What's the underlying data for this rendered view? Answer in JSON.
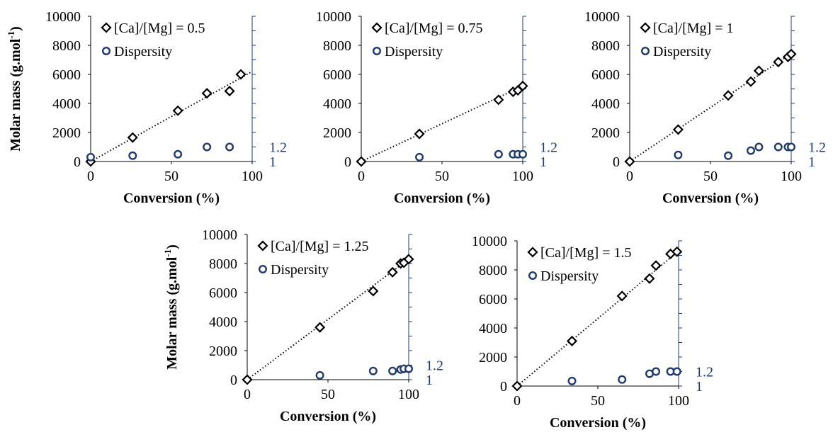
{
  "chart_data": [
    {
      "type": "scatter",
      "xlabel": "Conversion (%)",
      "ylabel": "Molar mass (g.mol",
      "ylabel_sup": "-1",
      "xlim": [
        0,
        100
      ],
      "ylim": [
        0,
        10000
      ],
      "y2lim": [
        1,
        3
      ],
      "x_ticks": [
        "0",
        "50",
        "100"
      ],
      "y_ticks": [
        "0",
        "2000",
        "4000",
        "6000",
        "8000",
        "10000"
      ],
      "y2_ticks": [
        "1",
        "1.2"
      ],
      "legend": [
        "[Ca]/[Mg] = 0.5",
        "Dispersity"
      ],
      "colors": {
        "molar_mass": "#000000",
        "dispersity": "#1f3a6e",
        "trendline": "#000000"
      },
      "series": [
        {
          "name": "[Ca]/[Mg] = 0.5",
          "marker": "diamond",
          "axis": "left",
          "x": [
            0,
            26,
            54,
            72,
            86,
            93
          ],
          "y": [
            0,
            1650,
            3500,
            4700,
            4850,
            6000
          ]
        },
        {
          "name": "Dispersity",
          "marker": "circle",
          "axis": "right",
          "x": [
            0,
            26,
            54,
            72,
            86
          ],
          "y": [
            1.06,
            1.08,
            1.1,
            1.2,
            1.2
          ]
        }
      ],
      "trendline": {
        "x": [
          0,
          100
        ],
        "y": [
          0,
          6200
        ]
      }
    },
    {
      "type": "scatter",
      "xlabel": "Conversion (%)",
      "xlim": [
        0,
        100
      ],
      "ylim": [
        0,
        10000
      ],
      "y2lim": [
        1,
        3
      ],
      "x_ticks": [
        "0",
        "50",
        "100"
      ],
      "y_ticks": [
        "0",
        "2000",
        "4000",
        "6000",
        "8000",
        "10000"
      ],
      "y2_ticks": [
        "1",
        "1.2"
      ],
      "legend": [
        "[Ca]/[Mg] = 0.75",
        "Dispersity"
      ],
      "series": [
        {
          "name": "[Ca]/[Mg] = 0.75",
          "marker": "diamond",
          "axis": "left",
          "x": [
            0,
            36,
            85,
            94,
            97,
            100
          ],
          "y": [
            0,
            1900,
            4250,
            4800,
            4900,
            5200
          ]
        },
        {
          "name": "Dispersity",
          "marker": "circle",
          "axis": "right",
          "x": [
            36,
            85,
            94,
            97,
            100
          ],
          "y": [
            1.06,
            1.1,
            1.1,
            1.1,
            1.1
          ]
        }
      ],
      "trendline": {
        "x": [
          0,
          100
        ],
        "y": [
          0,
          5200
        ]
      }
    },
    {
      "type": "scatter",
      "xlabel": "Conversion (%)",
      "xlim": [
        0,
        100
      ],
      "ylim": [
        0,
        10000
      ],
      "y2lim": [
        1,
        3
      ],
      "x_ticks": [
        "0",
        "50",
        "100"
      ],
      "y_ticks": [
        "0",
        "2000",
        "4000",
        "6000",
        "8000",
        "10000"
      ],
      "y2_ticks": [
        "1",
        "1.2"
      ],
      "legend": [
        "[Ca]/[Mg] = 1",
        "Dispersity"
      ],
      "series": [
        {
          "name": "[Ca]/[Mg] = 1",
          "marker": "diamond",
          "axis": "left",
          "x": [
            0,
            30,
            61,
            75,
            80,
            92,
            98,
            100
          ],
          "y": [
            0,
            2200,
            4550,
            5500,
            6250,
            6850,
            7200,
            7400
          ]
        },
        {
          "name": "Dispersity",
          "marker": "circle",
          "axis": "right",
          "x": [
            30,
            61,
            75,
            80,
            92,
            98,
            100
          ],
          "y": [
            1.09,
            1.08,
            1.15,
            1.2,
            1.2,
            1.2,
            1.2
          ]
        }
      ],
      "trendline": {
        "x": [
          0,
          100
        ],
        "y": [
          0,
          7450
        ]
      }
    },
    {
      "type": "scatter",
      "xlabel": "Conversion (%)",
      "ylabel": "Molar mass (g.mol",
      "ylabel_sup": "-1",
      "xlim": [
        0,
        100
      ],
      "ylim": [
        0,
        10000
      ],
      "y2lim": [
        1,
        3
      ],
      "x_ticks": [
        "0",
        "50",
        "100"
      ],
      "y_ticks": [
        "0",
        "2000",
        "4000",
        "6000",
        "8000",
        "10000"
      ],
      "y2_ticks": [
        "1",
        "1.2"
      ],
      "legend": [
        "[Ca]/[Mg] = 1.25",
        "Dispersity"
      ],
      "series": [
        {
          "name": "[Ca]/[Mg] = 1.25",
          "marker": "diamond",
          "axis": "left",
          "x": [
            0,
            45,
            78,
            90,
            95,
            97,
            100
          ],
          "y": [
            0,
            3600,
            6100,
            7400,
            8000,
            8050,
            8300
          ]
        },
        {
          "name": "Dispersity",
          "marker": "circle",
          "axis": "right",
          "x": [
            45,
            78,
            90,
            95,
            97,
            100
          ],
          "y": [
            1.06,
            1.12,
            1.12,
            1.14,
            1.15,
            1.15
          ]
        }
      ],
      "trendline": {
        "x": [
          0,
          100
        ],
        "y": [
          0,
          8300
        ]
      }
    },
    {
      "type": "scatter",
      "xlabel": "Conversion (%)",
      "xlim": [
        0,
        100
      ],
      "ylim": [
        0,
        10000
      ],
      "y2lim": [
        1,
        3
      ],
      "x_ticks": [
        "0",
        "50",
        "100"
      ],
      "y_ticks": [
        "0",
        "2000",
        "4000",
        "6000",
        "8000",
        "10000"
      ],
      "y2_ticks": [
        "1",
        "1.2"
      ],
      "legend": [
        "[Ca]/[Mg] = 1.5",
        "Dispersity"
      ],
      "series": [
        {
          "name": "[Ca]/[Mg] = 1.5",
          "marker": "diamond",
          "axis": "left",
          "x": [
            0,
            34,
            65,
            82,
            86,
            95,
            99
          ],
          "y": [
            0,
            3100,
            6200,
            7400,
            8300,
            9100,
            9250
          ]
        },
        {
          "name": "Dispersity",
          "marker": "circle",
          "axis": "right",
          "x": [
            34,
            65,
            82,
            86,
            95,
            99
          ],
          "y": [
            1.07,
            1.09,
            1.17,
            1.2,
            1.2,
            1.2
          ]
        }
      ],
      "trendline": {
        "x": [
          0,
          100
        ],
        "y": [
          0,
          9300
        ]
      }
    }
  ]
}
